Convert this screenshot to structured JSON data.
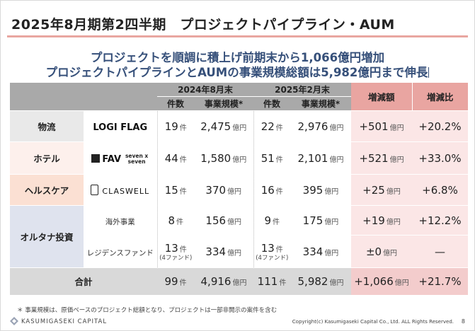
{
  "title": "2025年8月期第2四半期　プロジェクトパイプライン・AUM",
  "subtitle_line1": "プロジェクトを順調に積上げ前期末から1,066億円増加",
  "subtitle_line2": "プロジェクトパイプラインとAUMの事業規模総額は5,982億円まで伸長",
  "header": {
    "period1": "2024年8月末",
    "period2": "2025年2月末",
    "count": "件数",
    "scale": "事業規模*",
    "delta_amount": "増減額",
    "delta_ratio": "増減比"
  },
  "units": {
    "count": "件",
    "oku": "億円"
  },
  "rows": [
    {
      "category": "物流",
      "brand": "LOGI FLAG",
      "c1": "19",
      "s1": "2,475",
      "c2": "22",
      "s2": "2,976",
      "delta": "+501",
      "ratio": "+20.2%"
    },
    {
      "category": "ホテル",
      "brand": "FAV",
      "brand2": "seven x seven",
      "c1": "44",
      "s1": "1,580",
      "c2": "51",
      "s2": "2,101",
      "delta": "+521",
      "ratio": "+33.0%"
    },
    {
      "category": "ヘルスケア",
      "brand": "CLASWELL",
      "c1": "15",
      "s1": "370",
      "c2": "16",
      "s2": "395",
      "delta": "+25",
      "ratio": "+6.8%"
    },
    {
      "category": "オルタナ投資",
      "brand": "海外事業",
      "c1": "8",
      "s1": "156",
      "c2": "9",
      "s2": "175",
      "delta": "+19",
      "ratio": "+12.2%"
    },
    {
      "category": "",
      "brand": "レジデンスファンド",
      "c1": "13",
      "c1_note": "(4ファンド)",
      "s1": "334",
      "c2": "13",
      "c2_note": "(4ファンド)",
      "s2": "334",
      "delta": "±0",
      "ratio": "—"
    }
  ],
  "total": {
    "label": "合計",
    "c1": "99",
    "s1": "4,916",
    "c2": "111",
    "s2": "5,982",
    "delta": "+1,066",
    "ratio": "+21.7%"
  },
  "footnote": "＊ 事業規模は、原価ベースのプロジェクト総額となり、プロジェクトは一部非開示の案件を含む",
  "company_logo_text": "KASUMIGASEKI CAPITAL",
  "copyright": "Copyright(c) Kasumigaseki Capital Co., Ltd. ALL Rights Reserved.",
  "page_number": "8"
}
